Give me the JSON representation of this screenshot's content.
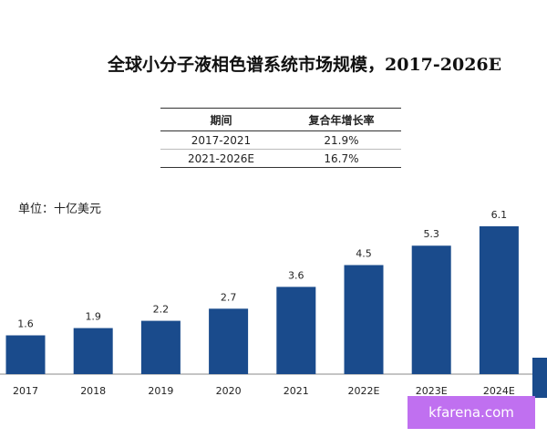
{
  "header": {
    "title": "全球小分子液相色谱系统市场规模，2017-2026E"
  },
  "cagr_table": {
    "col_period": "期间",
    "col_cagr": "复合年增长率",
    "rows": [
      {
        "period": "2017-2021",
        "cagr": "21.9%"
      },
      {
        "period": "2021-2026E",
        "cagr": "16.7%"
      }
    ]
  },
  "unit_label": "单位：十亿美元",
  "watermark": "kfarena.com",
  "colors": {
    "bar": "#1a4b8c",
    "axis": "#888888",
    "watermark_bg": "#c070f0"
  },
  "chart_data": {
    "type": "bar",
    "title": "全球小分子液相色谱系统市场规模，2017-2026E",
    "categories": [
      "2017",
      "2018",
      "2019",
      "2020",
      "2021",
      "2022E",
      "2023E",
      "2024E"
    ],
    "values": [
      1.6,
      1.9,
      2.2,
      2.7,
      3.6,
      4.5,
      5.3,
      6.1
    ],
    "data_labels": [
      "1.6",
      "1.9",
      "2.2",
      "2.7",
      "3.6",
      "4.5",
      "5.3",
      "6.1"
    ],
    "ylabel": "",
    "xlabel": "",
    "ylim": [
      0,
      6.1
    ],
    "grid": false,
    "legend": "none"
  }
}
